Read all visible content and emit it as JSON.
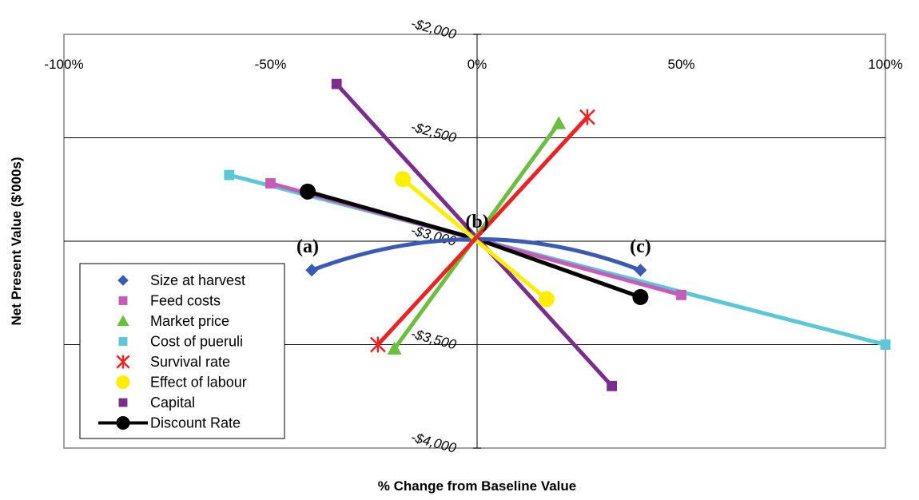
{
  "chart_data": {
    "type": "line",
    "xlabel": "% Change from Baseline Value",
    "ylabel": "Net Present Value ($'000s)",
    "xlim": [
      -100,
      100
    ],
    "ylim": [
      -4000,
      -2000
    ],
    "x_ticks": [
      -100,
      -50,
      0,
      50,
      100
    ],
    "x_tick_labels": [
      "-100%",
      "-50%",
      "0%",
      "50%",
      "100%"
    ],
    "y_ticks": [
      -2000,
      -2500,
      -3000,
      -3500,
      -4000
    ],
    "y_tick_labels": [
      "-$2,000",
      "-$2,500",
      "-$3,000",
      "-$3,500",
      "-$4,000"
    ],
    "grid": "horizontal",
    "legend_position": "bottom-left",
    "annotations": [
      {
        "text": "(a)",
        "x": -41,
        "y": -3055
      },
      {
        "text": "(b)",
        "x": 0,
        "y": -2935
      },
      {
        "text": "(c)",
        "x": 40,
        "y": -3055
      }
    ],
    "series": [
      {
        "name": "Size at harvest",
        "color": "#3a5bb5",
        "marker": "diamond",
        "curve": "quadratic",
        "x": [
          -40,
          0,
          40
        ],
        "y": [
          -3140,
          -2990,
          -3140
        ]
      },
      {
        "name": "Feed costs",
        "color": "#c65bb8",
        "marker": "square",
        "x": [
          -50,
          50
        ],
        "y": [
          -2720,
          -3260
        ]
      },
      {
        "name": "Market price",
        "color": "#6abf3c",
        "marker": "triangle",
        "x": [
          -20,
          20
        ],
        "y": [
          -3520,
          -2430
        ]
      },
      {
        "name": "Cost of pueruli",
        "color": "#5ac8d8",
        "marker": "square",
        "x": [
          -60,
          100
        ],
        "y": [
          -2680,
          -3500
        ]
      },
      {
        "name": "Survival rate",
        "color": "#ee2222",
        "marker": "x",
        "x": [
          -24,
          27
        ],
        "y": [
          -3500,
          -2400
        ]
      },
      {
        "name": "Effect of labour",
        "color": "#ffee00",
        "marker": "circle",
        "x": [
          -18,
          17
        ],
        "y": [
          -2700,
          -3280
        ]
      },
      {
        "name": "Capital",
        "color": "#7b2d8e",
        "marker": "square",
        "x": [
          -34,
          33
        ],
        "y": [
          -2240,
          -3700
        ]
      },
      {
        "name": "Discount Rate",
        "color": "#000000",
        "marker": "circle",
        "x": [
          -41,
          0,
          40
        ],
        "y": [
          -2760,
          -2990,
          -3270
        ]
      }
    ]
  }
}
